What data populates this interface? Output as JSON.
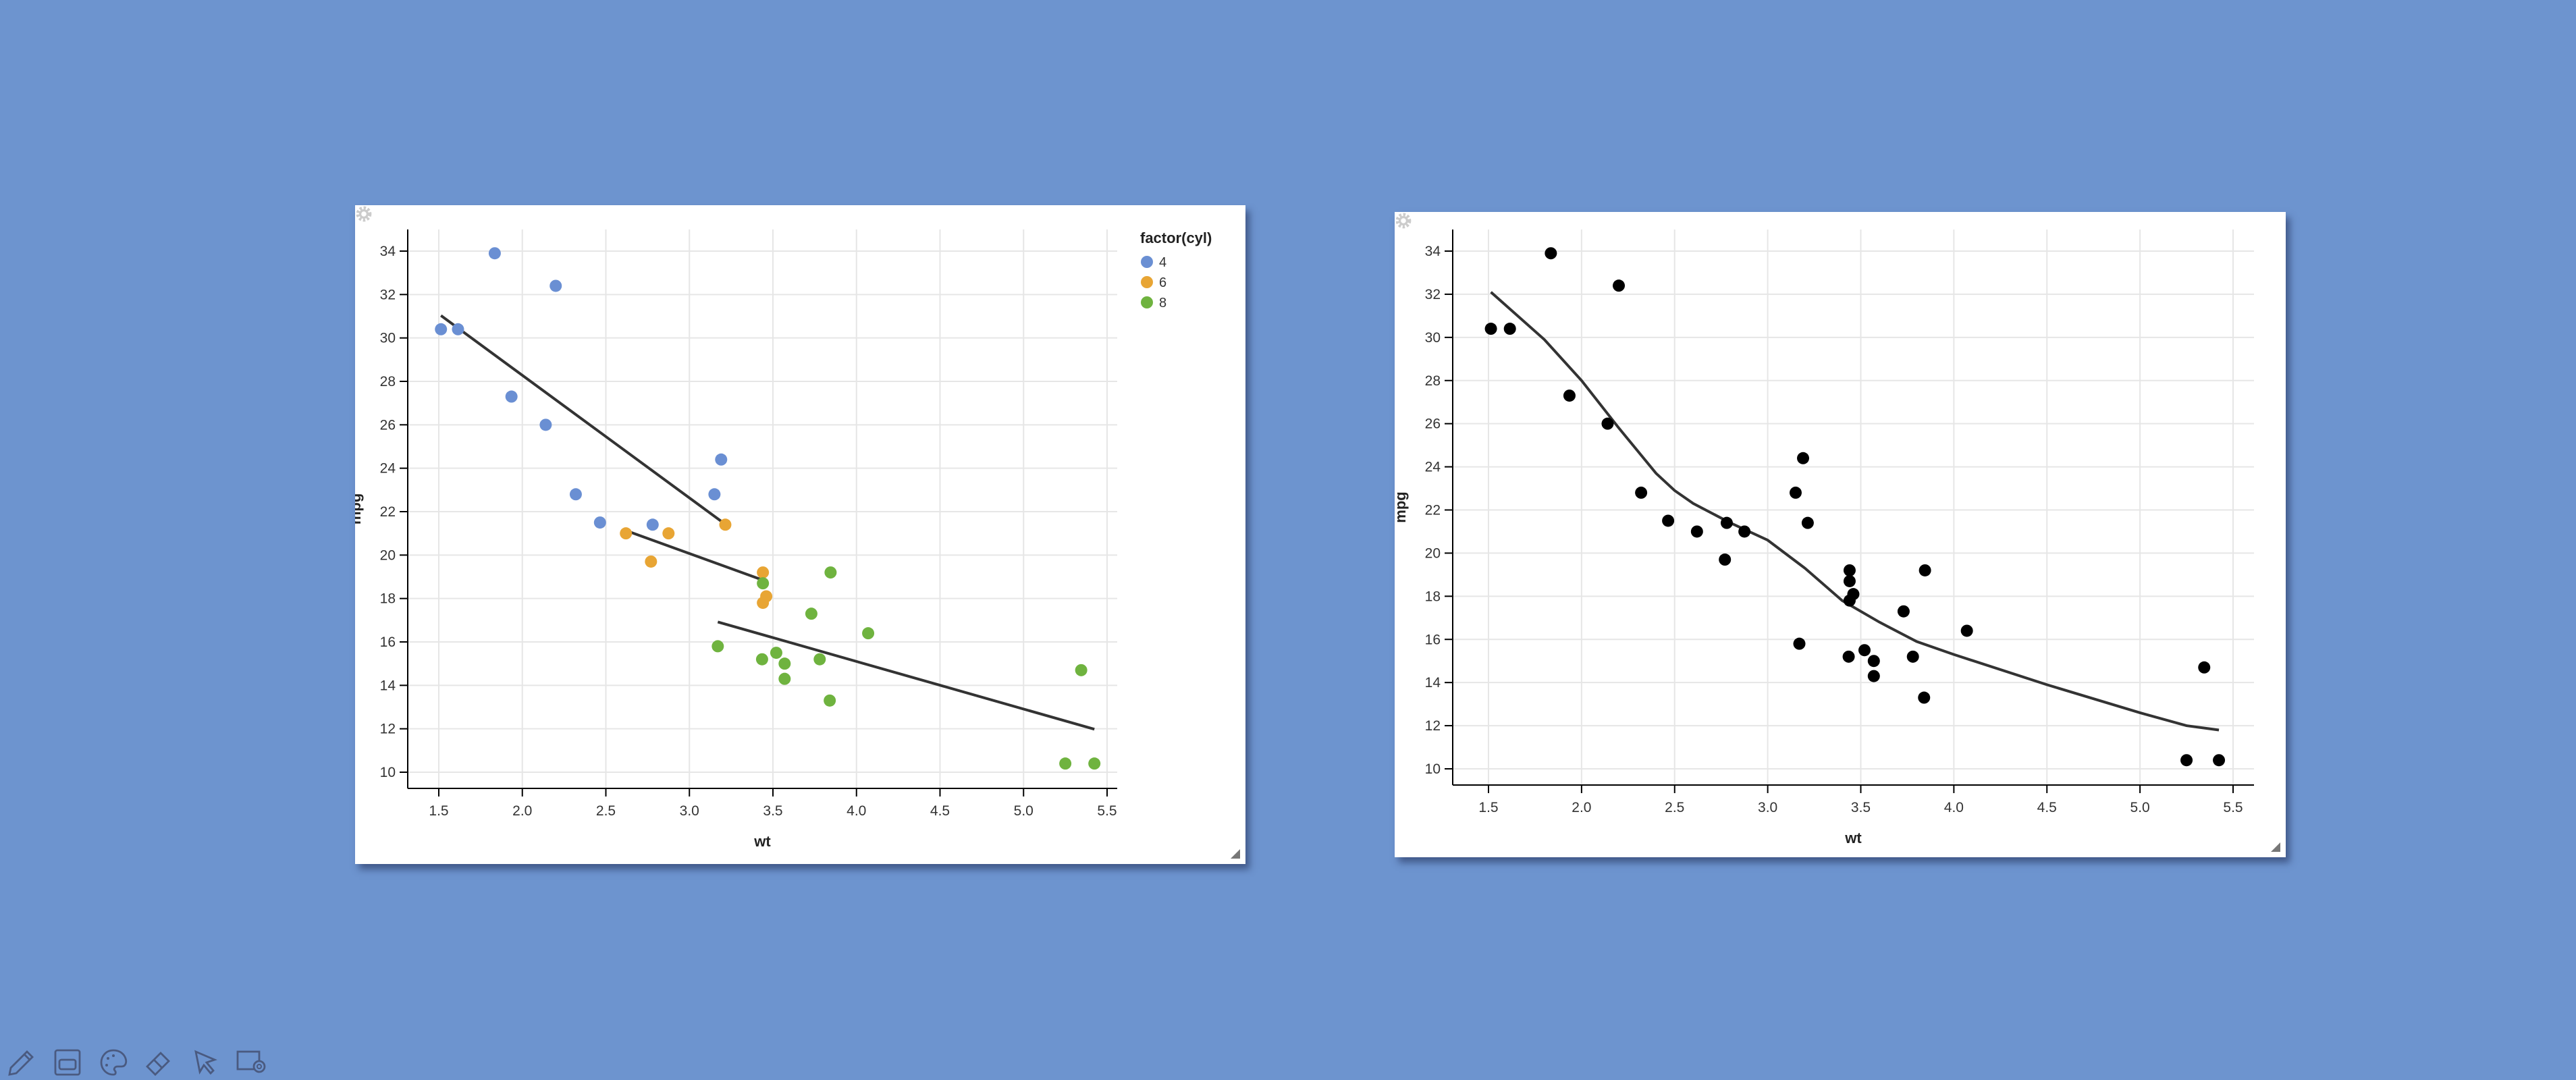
{
  "chart_data": [
    {
      "type": "scatter",
      "xlabel": "wt",
      "ylabel": "mpg",
      "xlim": [
        1.35,
        5.6
      ],
      "ylim": [
        9,
        35
      ],
      "xticks": [
        1.5,
        2.0,
        2.5,
        3.0,
        3.5,
        4.0,
        4.5,
        5.0,
        5.5
      ],
      "xtick_labels": [
        "1.5",
        "2.0",
        "2.5",
        "3.0",
        "3.5",
        "4.0",
        "4.5",
        "5.0",
        "5.5"
      ],
      "yticks": [
        10,
        12,
        14,
        16,
        18,
        20,
        22,
        24,
        26,
        28,
        30,
        32,
        34
      ],
      "grid": true,
      "legend": {
        "title": "factor(cyl)",
        "placement": "top-right",
        "entries": [
          {
            "label": "4",
            "color": "#6a8fd3"
          },
          {
            "label": "6",
            "color": "#e8a534"
          },
          {
            "label": "8",
            "color": "#6fb33f"
          }
        ]
      },
      "series": [
        {
          "name": "4",
          "color": "#6a8fd3",
          "points": [
            [
              2.32,
              22.8
            ],
            [
              3.19,
              24.4
            ],
            [
              3.15,
              22.8
            ],
            [
              2.2,
              32.4
            ],
            [
              1.615,
              30.4
            ],
            [
              1.835,
              33.9
            ],
            [
              2.465,
              21.5
            ],
            [
              1.935,
              27.3
            ],
            [
              2.14,
              26.0
            ],
            [
              1.513,
              30.4
            ],
            [
              2.78,
              21.4
            ]
          ],
          "fit": [
            [
              1.513,
              31.03
            ],
            [
              3.19,
              21.56
            ]
          ]
        },
        {
          "name": "6",
          "color": "#e8a534",
          "points": [
            [
              2.62,
              21.0
            ],
            [
              2.875,
              21.0
            ],
            [
              3.215,
              21.4
            ],
            [
              3.46,
              18.1
            ],
            [
              3.44,
              19.2
            ],
            [
              3.44,
              17.8
            ],
            [
              2.77,
              19.7
            ]
          ],
          "fit": [
            [
              2.62,
              21.13
            ],
            [
              3.46,
              18.79
            ]
          ]
        },
        {
          "name": "8",
          "color": "#6fb33f",
          "points": [
            [
              3.44,
              18.7
            ],
            [
              3.57,
              14.3
            ],
            [
              4.07,
              16.4
            ],
            [
              3.73,
              17.3
            ],
            [
              3.78,
              15.2
            ],
            [
              5.25,
              10.4
            ],
            [
              5.424,
              10.4
            ],
            [
              5.345,
              14.7
            ],
            [
              3.52,
              15.5
            ],
            [
              3.435,
              15.2
            ],
            [
              3.84,
              13.3
            ],
            [
              3.845,
              19.2
            ],
            [
              3.17,
              15.8
            ],
            [
              3.57,
              15.0
            ]
          ],
          "fit": [
            [
              3.17,
              16.92
            ],
            [
              5.424,
              11.98
            ]
          ]
        }
      ]
    },
    {
      "type": "scatter",
      "xlabel": "wt",
      "ylabel": "mpg",
      "xlim": [
        1.35,
        5.62
      ],
      "ylim": [
        9,
        35
      ],
      "xticks": [
        1.5,
        2.0,
        2.5,
        3.0,
        3.5,
        4.0,
        4.5,
        5.0,
        5.5
      ],
      "xtick_labels": [
        "1.5",
        "2.0",
        "2.5",
        "3.0",
        "3.5",
        "4.0",
        "4.5",
        "5.0",
        "5.5"
      ],
      "yticks": [
        10,
        12,
        14,
        16,
        18,
        20,
        22,
        24,
        26,
        28,
        30,
        32,
        34
      ],
      "grid": true,
      "series": [
        {
          "color": "#000000",
          "points": [
            [
              2.62,
              21.0
            ],
            [
              2.875,
              21.0
            ],
            [
              2.32,
              22.8
            ],
            [
              3.215,
              21.4
            ],
            [
              3.44,
              18.7
            ],
            [
              3.46,
              18.1
            ],
            [
              3.57,
              14.3
            ],
            [
              3.19,
              24.4
            ],
            [
              3.15,
              22.8
            ],
            [
              3.44,
              19.2
            ],
            [
              3.44,
              17.8
            ],
            [
              4.07,
              16.4
            ],
            [
              3.73,
              17.3
            ],
            [
              3.78,
              15.2
            ],
            [
              5.25,
              10.4
            ],
            [
              5.424,
              10.4
            ],
            [
              5.345,
              14.7
            ],
            [
              2.2,
              32.4
            ],
            [
              1.615,
              30.4
            ],
            [
              1.835,
              33.9
            ],
            [
              2.465,
              21.5
            ],
            [
              3.52,
              15.5
            ],
            [
              3.435,
              15.2
            ],
            [
              3.84,
              13.3
            ],
            [
              3.845,
              19.2
            ],
            [
              1.935,
              27.3
            ],
            [
              2.14,
              26.0
            ],
            [
              1.513,
              30.4
            ],
            [
              3.17,
              15.8
            ],
            [
              2.77,
              19.7
            ],
            [
              3.57,
              15.0
            ],
            [
              2.78,
              21.4
            ]
          ],
          "smooth": [
            [
              1.513,
              32.1
            ],
            [
              1.8,
              29.9
            ],
            [
              2.0,
              28.0
            ],
            [
              2.2,
              25.8
            ],
            [
              2.4,
              23.7
            ],
            [
              2.5,
              22.9
            ],
            [
              2.6,
              22.3
            ],
            [
              2.8,
              21.4
            ],
            [
              3.0,
              20.6
            ],
            [
              3.2,
              19.3
            ],
            [
              3.4,
              17.8
            ],
            [
              3.6,
              16.8
            ],
            [
              3.8,
              15.9
            ],
            [
              4.0,
              15.3
            ],
            [
              4.5,
              13.9
            ],
            [
              5.0,
              12.6
            ],
            [
              5.25,
              12.0
            ],
            [
              5.424,
              11.8
            ]
          ]
        }
      ]
    }
  ],
  "toolbar": {
    "icons": [
      "pencil-icon",
      "window-icon",
      "palette-icon",
      "eraser-icon",
      "cursor-icon",
      "screen-record-icon"
    ]
  },
  "colors": {
    "background": "#6d94cf",
    "line": "#333333"
  }
}
